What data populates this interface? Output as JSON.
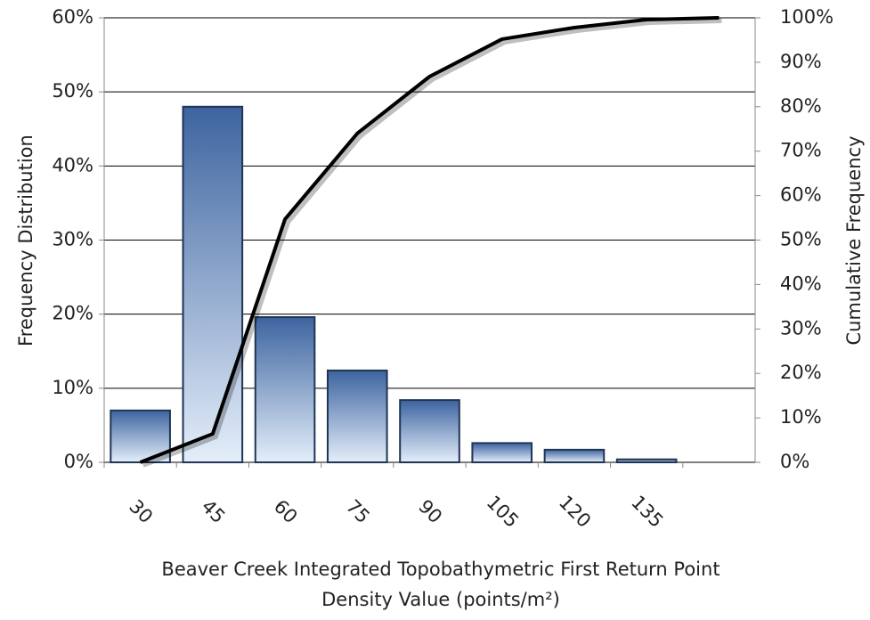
{
  "chart_data": {
    "type": "bar",
    "ylabel": "Frequency Distribution",
    "y2label": "Cumulative Frequency",
    "xlabel": [
      "Beaver Creek Integrated Topobathymetric First Return Point",
      "Density Value (points/m²)"
    ],
    "categories": [
      "30",
      "45",
      "60",
      "75",
      "90",
      "105",
      "120",
      "135",
      null
    ],
    "series": [
      {
        "type": "bar",
        "color": "#3d64a0",
        "values": [
          7,
          48,
          19.6,
          12.4,
          8.4,
          2.6,
          1.7,
          0.4,
          0
        ]
      },
      {
        "type": "line",
        "axis": "y2",
        "color": "#000000",
        "values": [
          0,
          6.4,
          54.7,
          74,
          86.8,
          95.2,
          97.8,
          99.6,
          100
        ]
      }
    ],
    "ylim": [
      0,
      60
    ],
    "yticks": [
      {
        "value": 0,
        "label": "0%"
      },
      {
        "value": 10,
        "label": "10%"
      },
      {
        "value": 20,
        "label": "20%"
      },
      {
        "value": 30,
        "label": "30%"
      },
      {
        "value": 40,
        "label": "40%"
      },
      {
        "value": 50,
        "label": "50%"
      },
      {
        "value": 60,
        "label": "60%"
      }
    ],
    "y2lim": [
      0,
      100
    ],
    "y2ticks": [
      {
        "value": 0,
        "label": "0%"
      },
      {
        "value": 10,
        "label": "10%"
      },
      {
        "value": 20,
        "label": "20%"
      },
      {
        "value": 30,
        "label": "30%"
      },
      {
        "value": 40,
        "label": "40%"
      },
      {
        "value": 50,
        "label": "50%"
      },
      {
        "value": 60,
        "label": "60%"
      },
      {
        "value": 70,
        "label": "70%"
      },
      {
        "value": 80,
        "label": "80%"
      },
      {
        "value": 90,
        "label": "90%"
      },
      {
        "value": 100,
        "label": "100%"
      }
    ],
    "grid": true
  }
}
